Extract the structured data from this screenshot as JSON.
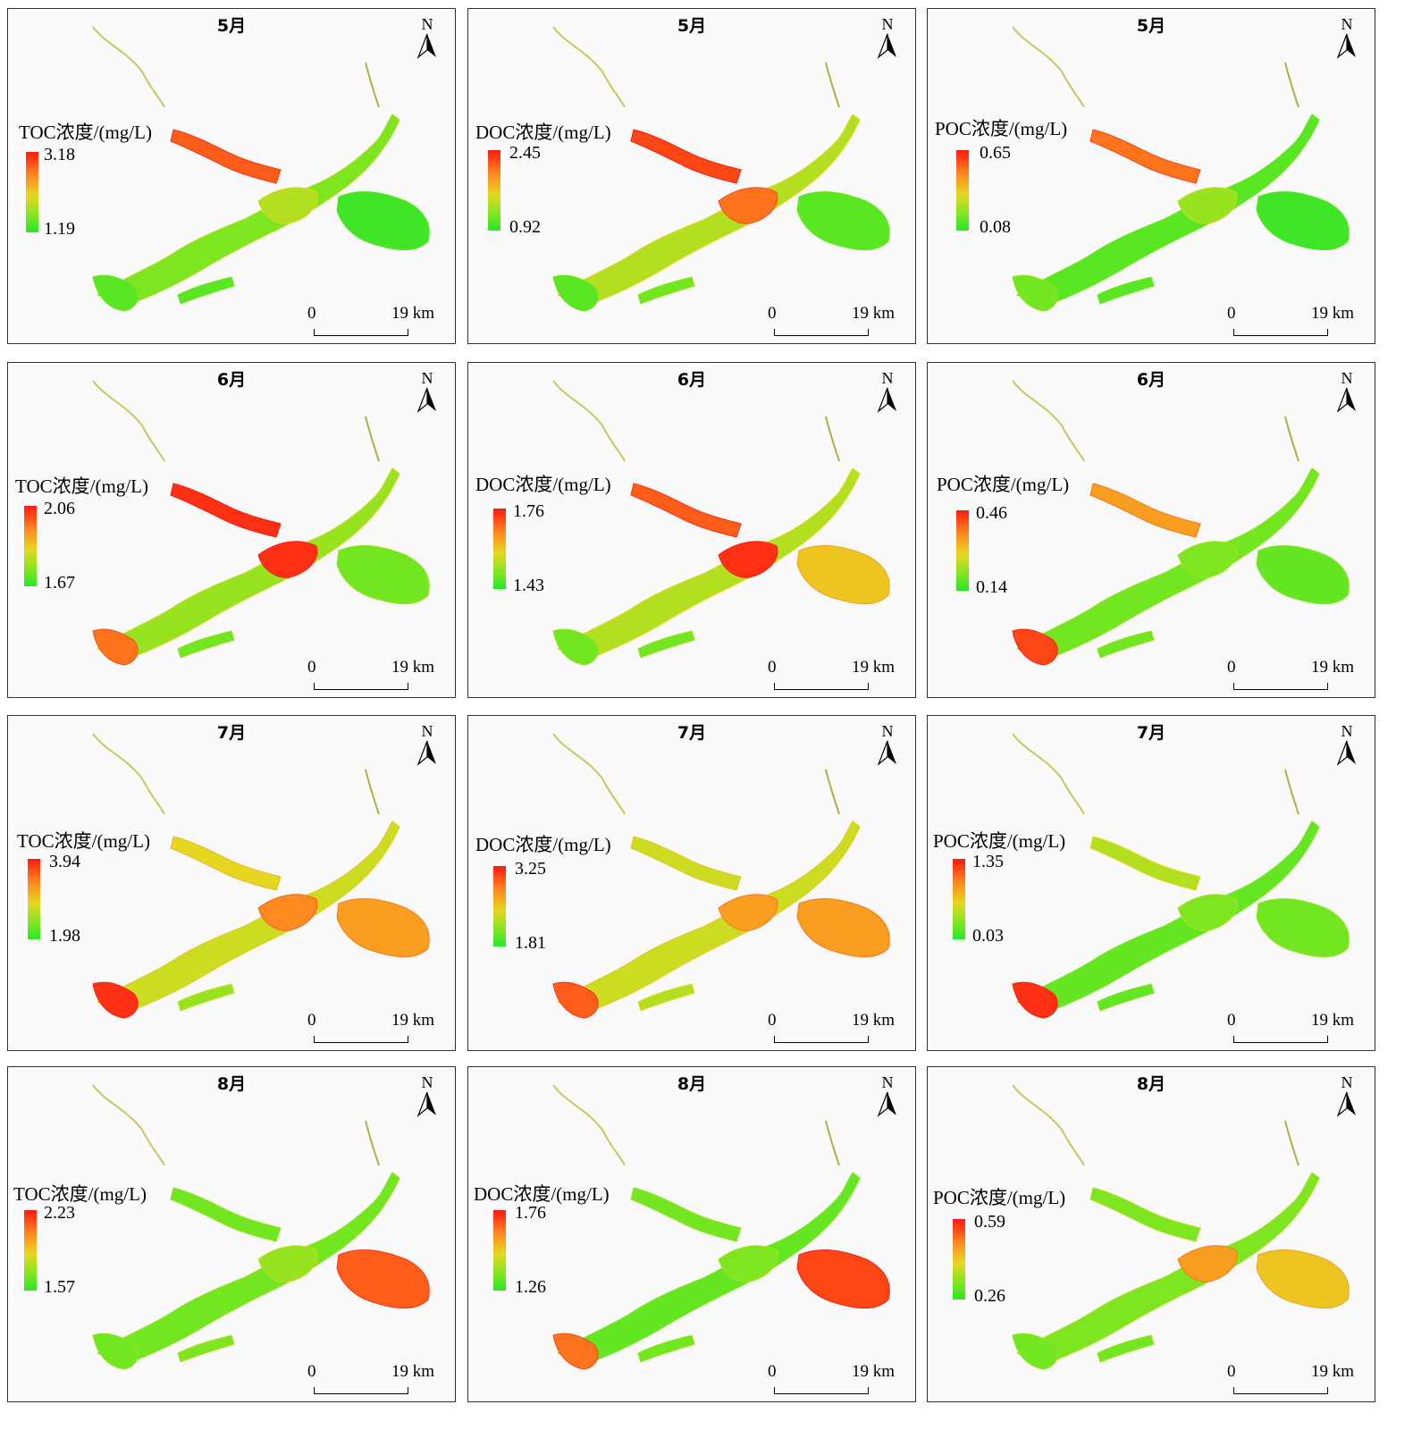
{
  "north_label": "N",
  "scale": {
    "start": "0",
    "end": "19 km"
  },
  "colors": {
    "high": "#ff1a10",
    "mid": "#e6d820",
    "low": "#28e628"
  },
  "panels": [
    {
      "month": "5月",
      "title": "TOC浓度/(mg/L)",
      "max": "3.18",
      "min": "1.19"
    },
    {
      "month": "5月",
      "title": "DOC浓度/(mg/L)",
      "max": "2.45",
      "min": "0.92"
    },
    {
      "month": "5月",
      "title": "POC浓度/(mg/L)",
      "max": "0.65",
      "min": "0.08"
    },
    {
      "month": "6月",
      "title": "TOC浓度/(mg/L)",
      "max": "2.06",
      "min": "1.67"
    },
    {
      "month": "6月",
      "title": "DOC浓度/(mg/L)",
      "max": "1.76",
      "min": "1.43"
    },
    {
      "month": "6月",
      "title": "POC浓度/(mg/L)",
      "max": "0.46",
      "min": "0.14"
    },
    {
      "month": "7月",
      "title": "TOC浓度/(mg/L)",
      "max": "3.94",
      "min": "1.98"
    },
    {
      "month": "7月",
      "title": "DOC浓度/(mg/L)",
      "max": "3.25",
      "min": "1.81"
    },
    {
      "month": "7月",
      "title": "POC浓度/(mg/L)",
      "max": "1.35",
      "min": "0.03"
    },
    {
      "month": "8月",
      "title": "TOC浓度/(mg/L)",
      "max": "2.23",
      "min": "1.57"
    },
    {
      "month": "8月",
      "title": "DOC浓度/(mg/L)",
      "max": "1.76",
      "min": "1.26"
    },
    {
      "month": "8月",
      "title": "POC浓度/(mg/L)",
      "max": "0.59",
      "min": "0.26"
    }
  ]
}
